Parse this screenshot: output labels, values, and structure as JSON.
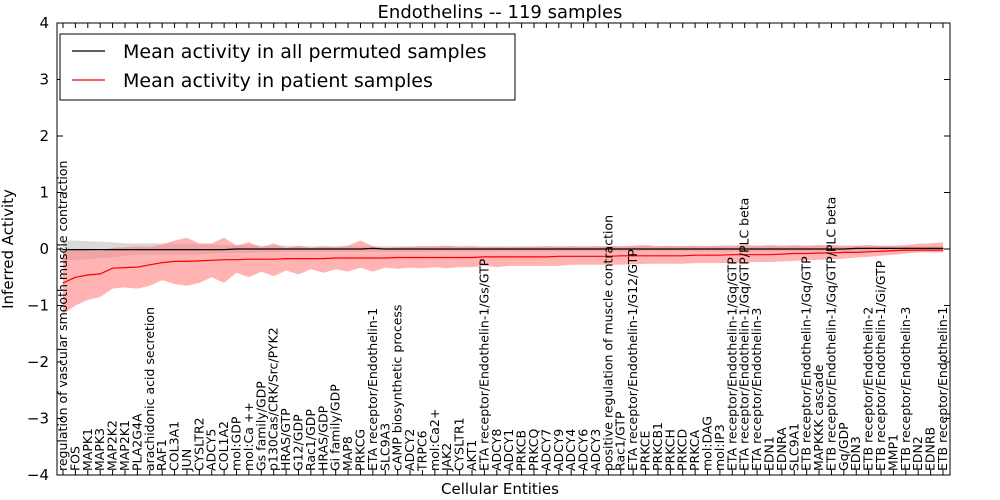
{
  "chart_data": {
    "type": "line",
    "title": "Endothelins -- 119 samples",
    "xlabel": "Cellular Entities",
    "ylabel": "Inferred Activity",
    "ylim": [
      -4,
      4
    ],
    "yticks": [
      "4",
      "3",
      "2",
      "1",
      "0",
      "−1",
      "−2",
      "−3",
      "−4"
    ],
    "legend": {
      "placement": "top-left",
      "entries": [
        "Mean activity in all permuted samples",
        "Mean activity in patient samples"
      ]
    },
    "colors": {
      "permuted": "#000000",
      "patient": "#ff0000",
      "patient_band": "#ff8080",
      "permuted_band": "#bbbbbb"
    },
    "entities": [
      "regulation of vascular smooth muscle contraction",
      "FOS",
      "MAPK1",
      "MAPK3",
      "MAP2K2",
      "MAP2K1",
      "PLA2G4A",
      "arachidonic acid secretion",
      "RAF1",
      "COL3A1",
      "JUN",
      "CYSLTR2",
      "ADCY5",
      "COL1A2",
      "mol:GDP",
      "mol:Ca ++",
      "Gs family/GDP",
      "p130Cas/CRK/Src/PYK2",
      "HRAS/GTP",
      "G12/GDP",
      "Rac1/GDP",
      "HRAS/GDP",
      "Gi family/GDP",
      "MAP8",
      "PRKCG",
      "ETA receptor/Endothelin-1",
      "SLC9A3",
      "cAMP biosynthetic process",
      "ADCY2",
      "TRPC6",
      "mol:Ca2+",
      "JAK2",
      "CYSLTR1",
      "AKT1",
      "ETA receptor/Endothelin-1/Gs/GTP",
      "ADCY8",
      "ADCY1",
      "PRKCB",
      "PRKCQ",
      "ADCY7",
      "ADCY9",
      "ADCY4",
      "ADCY6",
      "ADCY3",
      "positive regulation of muscle contraction",
      "Rac1/GTP",
      "ETA receptor/Endothelin-1/G12/GTP",
      "PRKCE",
      "PRKCB1",
      "PRKCH",
      "PRKCD",
      "PRKCA",
      "mol:DAG",
      "mol:IP3",
      "ETA receptor/Endothelin-1/Gq/GTP",
      "ETA receptor/Endothelin-1/Gq/GTP/PLC beta",
      "ETA receptor/Endothelin-3",
      "EDN1",
      "EDNRA",
      "SLC9A1",
      "ETB receptor/Endothelin-1/Gq/GTP",
      "MAPKKK cascade",
      "ETB receptor/Endothelin-1/Gq/GTP/PLC beta",
      "Gq/GDP",
      "EDN3",
      "ETB receptor/Endothelin-2",
      "ETB receptor/Endothelin-1/Gi/GTP",
      "MMP1",
      "ETB receptor/Endothelin-3",
      "EDN2",
      "EDNRB",
      "ETB receptor/Endothelin-1"
    ],
    "series": [
      {
        "name": "Mean activity in all permuted samples",
        "values": [
          -0.01,
          -0.01,
          -0.01,
          -0.01,
          -0.01,
          -0.01,
          -0.01,
          -0.01,
          -0.01,
          -0.01,
          -0.01,
          -0.01,
          -0.01,
          -0.01,
          0,
          0,
          0,
          0,
          0,
          0,
          0,
          0,
          0,
          0,
          0,
          0.01,
          0,
          0,
          0,
          0,
          0,
          0,
          0,
          0,
          0,
          0,
          0,
          0,
          0,
          0,
          0,
          0,
          0,
          0,
          0,
          0,
          0,
          0,
          0,
          0,
          0,
          0,
          0,
          0,
          0,
          0,
          0,
          0,
          0,
          0,
          0,
          0,
          0,
          0,
          0.01,
          0.01,
          0.01,
          0.01,
          0.01,
          0.01,
          0.01,
          0.01
        ],
        "lower": [
          -0.2,
          -0.2,
          -0.18,
          -0.16,
          -0.15,
          -0.12,
          -0.1,
          -0.1,
          -0.1,
          -0.1,
          -0.1,
          -0.1,
          -0.08,
          -0.07,
          -0.07,
          -0.07,
          -0.06,
          -0.06,
          -0.05,
          -0.05,
          -0.05,
          -0.05,
          -0.05,
          -0.05,
          -0.05,
          -0.05,
          -0.05,
          -0.05,
          -0.05,
          -0.05,
          -0.04,
          -0.04,
          -0.04,
          -0.04,
          -0.04,
          -0.04,
          -0.04,
          -0.04,
          -0.04,
          -0.04,
          -0.04,
          -0.04,
          -0.04,
          -0.04,
          -0.04,
          -0.04,
          -0.04,
          -0.04,
          -0.04,
          -0.04,
          -0.04,
          -0.04,
          -0.04,
          -0.04,
          -0.04,
          -0.04,
          -0.04,
          -0.04,
          -0.04,
          -0.04,
          -0.04,
          -0.04,
          -0.04,
          -0.04,
          -0.04,
          -0.04,
          -0.04,
          -0.04,
          -0.04,
          -0.04,
          -0.04,
          -0.04
        ],
        "upper": [
          0.15,
          0.15,
          0.14,
          0.13,
          0.12,
          0.1,
          0.1,
          0.1,
          0.1,
          0.09,
          0.09,
          0.08,
          0.08,
          0.07,
          0.07,
          0.07,
          0.06,
          0.06,
          0.06,
          0.05,
          0.05,
          0.05,
          0.05,
          0.05,
          0.05,
          0.05,
          0.05,
          0.05,
          0.05,
          0.05,
          0.05,
          0.05,
          0.05,
          0.05,
          0.05,
          0.05,
          0.05,
          0.05,
          0.05,
          0.05,
          0.05,
          0.05,
          0.05,
          0.05,
          0.05,
          0.05,
          0.05,
          0.05,
          0.05,
          0.05,
          0.05,
          0.05,
          0.05,
          0.05,
          0.05,
          0.05,
          0.05,
          0.05,
          0.05,
          0.05,
          0.05,
          0.05,
          0.05,
          0.05,
          0.05,
          0.05,
          0.05,
          0.05,
          0.05,
          0.05,
          0.05,
          0.05
        ]
      },
      {
        "name": "Mean activity in patient samples",
        "values": [
          -0.6,
          -0.5,
          -0.46,
          -0.44,
          -0.34,
          -0.33,
          -0.32,
          -0.28,
          -0.24,
          -0.22,
          -0.22,
          -0.21,
          -0.2,
          -0.19,
          -0.19,
          -0.18,
          -0.18,
          -0.18,
          -0.17,
          -0.17,
          -0.17,
          -0.17,
          -0.16,
          -0.16,
          -0.16,
          -0.16,
          -0.16,
          -0.15,
          -0.15,
          -0.15,
          -0.15,
          -0.15,
          -0.15,
          -0.15,
          -0.14,
          -0.14,
          -0.14,
          -0.14,
          -0.14,
          -0.14,
          -0.13,
          -0.13,
          -0.13,
          -0.13,
          -0.13,
          -0.12,
          -0.12,
          -0.12,
          -0.12,
          -0.12,
          -0.12,
          -0.11,
          -0.11,
          -0.11,
          -0.1,
          -0.1,
          -0.1,
          -0.1,
          -0.09,
          -0.08,
          -0.08,
          -0.07,
          -0.07,
          -0.06,
          -0.06,
          -0.05,
          -0.04,
          -0.03,
          -0.02,
          -0.02,
          -0.02,
          -0.02
        ],
        "lower": [
          -1.15,
          -1.0,
          -0.9,
          -0.85,
          -0.7,
          -0.68,
          -0.7,
          -0.65,
          -0.55,
          -0.62,
          -0.65,
          -0.6,
          -0.5,
          -0.6,
          -0.42,
          -0.5,
          -0.4,
          -0.48,
          -0.38,
          -0.45,
          -0.36,
          -0.42,
          -0.36,
          -0.4,
          -0.33,
          -0.4,
          -0.33,
          -0.35,
          -0.33,
          -0.34,
          -0.32,
          -0.34,
          -0.32,
          -0.32,
          -0.3,
          -0.32,
          -0.3,
          -0.3,
          -0.3,
          -0.3,
          -0.3,
          -0.28,
          -0.28,
          -0.28,
          -0.28,
          -0.28,
          -0.27,
          -0.26,
          -0.26,
          -0.26,
          -0.26,
          -0.25,
          -0.25,
          -0.25,
          -0.24,
          -0.24,
          -0.23,
          -0.23,
          -0.22,
          -0.21,
          -0.2,
          -0.19,
          -0.18,
          -0.17,
          -0.15,
          -0.14,
          -0.12,
          -0.1,
          -0.08,
          -0.06,
          -0.06,
          -0.06
        ],
        "upper": [
          -0.05,
          0,
          -0.02,
          -0.04,
          0.02,
          0.03,
          0.05,
          0.04,
          0.08,
          0.15,
          0.2,
          0.1,
          0.1,
          0.2,
          0.06,
          0.12,
          0.03,
          0.1,
          0.02,
          0.06,
          0.02,
          0.05,
          0.03,
          0.06,
          0.15,
          0.05,
          0.02,
          0.03,
          0.04,
          0.05,
          0.05,
          0.06,
          0.04,
          0.05,
          0.03,
          0.04,
          0.03,
          0.04,
          0.04,
          0.05,
          0.04,
          0.05,
          0.04,
          0.05,
          0.05,
          0.05,
          0.06,
          0.07,
          0.05,
          0.06,
          0.05,
          0.06,
          0.05,
          0.06,
          0.06,
          0.07,
          0.06,
          0.07,
          0.06,
          0.07,
          0.06,
          0.07,
          0.07,
          0.06,
          0.06,
          0.07,
          0.06,
          0.06,
          0.07,
          0.09,
          0.1,
          0.12
        ]
      }
    ]
  }
}
